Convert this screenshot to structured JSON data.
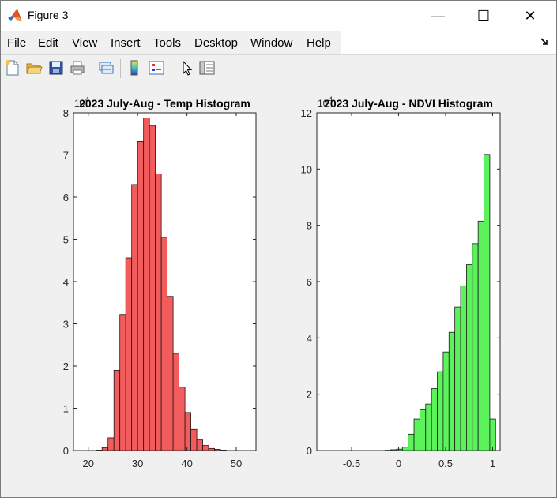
{
  "window": {
    "title": "Figure 3",
    "icon": "matlab-logo-icon"
  },
  "window_controls": {
    "minimize": "—",
    "maximize": "☐",
    "close": "✕"
  },
  "menu": [
    {
      "label": "File"
    },
    {
      "label": "Edit"
    },
    {
      "label": "View"
    },
    {
      "label": "Insert"
    },
    {
      "label": "Tools"
    },
    {
      "label": "Desktop"
    },
    {
      "label": "Window"
    },
    {
      "label": "Help"
    }
  ],
  "toolbar": [
    {
      "icon": "new-figure-icon"
    },
    {
      "icon": "open-file-icon"
    },
    {
      "icon": "save-icon"
    },
    {
      "icon": "print-icon"
    },
    {
      "icon": "link-plot-icon"
    },
    {
      "icon": "insert-colorbar-icon"
    },
    {
      "icon": "insert-legend-icon"
    },
    {
      "icon": "edit-plot-icon"
    },
    {
      "icon": "property-inspector-icon"
    }
  ],
  "chart_data": [
    {
      "type": "bar",
      "title": "2023 July-Aug - Temp Histogram",
      "exponent_label": "10",
      "exponent_power": "4",
      "bar_color": "#f25c5c",
      "xlim": [
        17,
        54
      ],
      "ylim": [
        0,
        8
      ],
      "xticks": [
        "20",
        "30",
        "40",
        "50"
      ],
      "xtick_values": [
        20,
        30,
        40,
        50
      ],
      "yticks": [
        "0",
        "1",
        "2",
        "3",
        "4",
        "5",
        "6",
        "7",
        "8"
      ],
      "ytick_values": [
        0,
        1,
        2,
        3,
        4,
        5,
        6,
        7,
        8
      ],
      "bin_width": 1.2,
      "bin_edges_start": 21.6,
      "values": [
        0.01,
        0.07,
        0.3,
        1.9,
        3.22,
        4.56,
        6.3,
        7.32,
        7.88,
        7.7,
        6.55,
        5.05,
        3.65,
        2.3,
        1.5,
        0.9,
        0.5,
        0.25,
        0.12,
        0.05,
        0.03,
        0.01
      ]
    },
    {
      "type": "bar",
      "title": "2023 July-Aug - NDVI Histogram",
      "exponent_label": "10",
      "exponent_power": "4",
      "bar_color": "#5cf25c",
      "xlim": [
        -0.87,
        1.08
      ],
      "ylim": [
        0,
        12
      ],
      "xticks": [
        "-0.5",
        "0",
        "0.5",
        "1"
      ],
      "xtick_values": [
        -0.5,
        0,
        0.5,
        1
      ],
      "yticks": [
        "0",
        "2",
        "4",
        "6",
        "8",
        "10",
        "12"
      ],
      "ytick_values": [
        0,
        2,
        4,
        6,
        8,
        10,
        12
      ],
      "bin_width": 0.062,
      "bin_edges_start": -0.146,
      "values": [
        0.01,
        0.03,
        0.05,
        0.12,
        0.58,
        1.12,
        1.45,
        1.65,
        2.2,
        2.8,
        3.5,
        4.2,
        5.1,
        5.85,
        6.6,
        7.35,
        8.15,
        10.52,
        1.12
      ]
    }
  ]
}
